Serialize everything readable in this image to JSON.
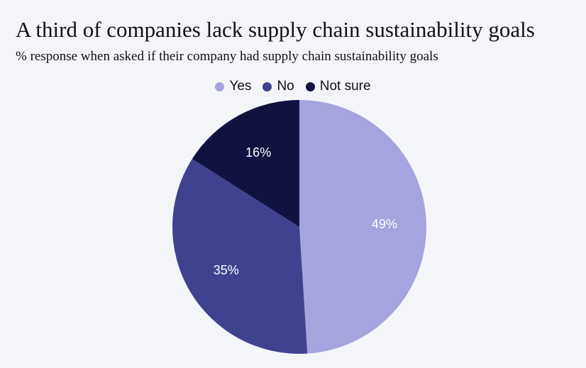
{
  "chart_data": {
    "type": "pie",
    "title": "A third of companies lack supply chain sustainability goals",
    "subtitle": "% response when asked if their company had supply chain sustainability goals",
    "legend_position": "top-center",
    "slices": [
      {
        "label": "Yes",
        "value": 49,
        "display": "49%",
        "color": "#a5a4de"
      },
      {
        "label": "No",
        "value": 35,
        "display": "35%",
        "color": "#404290"
      },
      {
        "label": "Not sure",
        "value": 16,
        "display": "16%",
        "color": "#111240"
      }
    ]
  }
}
